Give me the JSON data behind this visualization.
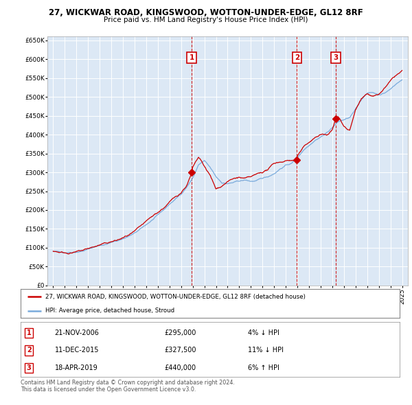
{
  "title1": "27, WICKWAR ROAD, KINGSWOOD, WOTTON-UNDER-EDGE, GL12 8RF",
  "title2": "Price paid vs. HM Land Registry's House Price Index (HPI)",
  "plot_bg_color": "#dce8f5",
  "red_line_label": "27, WICKWAR ROAD, KINGSWOOD, WOTTON-UNDER-EDGE, GL12 8RF (detached house)",
  "blue_line_label": "HPI: Average price, detached house, Stroud",
  "sales": [
    {
      "num": 1,
      "date_str": "21-NOV-2006",
      "date_x": 2006.9,
      "price": 295000,
      "pct": "4%",
      "dir": "↓"
    },
    {
      "num": 2,
      "date_str": "11-DEC-2015",
      "date_x": 2015.95,
      "price": 327500,
      "pct": "11%",
      "dir": "↓"
    },
    {
      "num": 3,
      "date_str": "18-APR-2019",
      "date_x": 2019.3,
      "price": 440000,
      "pct": "6%",
      "dir": "↑"
    }
  ],
  "footer1": "Contains HM Land Registry data © Crown copyright and database right 2024.",
  "footer2": "This data is licensed under the Open Government Licence v3.0.",
  "ylim": [
    0,
    660000
  ],
  "yticks": [
    0,
    50000,
    100000,
    150000,
    200000,
    250000,
    300000,
    350000,
    400000,
    450000,
    500000,
    550000,
    600000,
    650000
  ],
  "xlim": [
    1994.5,
    2025.5
  ],
  "xticks": [
    1995,
    1996,
    1997,
    1998,
    1999,
    2000,
    2001,
    2002,
    2003,
    2004,
    2005,
    2006,
    2007,
    2008,
    2009,
    2010,
    2011,
    2012,
    2013,
    2014,
    2015,
    2016,
    2017,
    2018,
    2019,
    2020,
    2021,
    2022,
    2023,
    2024,
    2025
  ],
  "hpi_anchors_x": [
    1995,
    1995.5,
    1996,
    1996.5,
    1997,
    1997.5,
    1998,
    1998.5,
    1999,
    1999.5,
    2000,
    2000.5,
    2001,
    2001.5,
    2002,
    2002.5,
    2003,
    2003.5,
    2004,
    2004.5,
    2005,
    2005.5,
    2006,
    2006.5,
    2007,
    2007.5,
    2008,
    2008.5,
    2009,
    2009.5,
    2010,
    2010.5,
    2011,
    2011.5,
    2012,
    2012.5,
    2013,
    2013.5,
    2014,
    2014.5,
    2015,
    2015.5,
    2016,
    2016.5,
    2017,
    2017.5,
    2018,
    2018.5,
    2019,
    2019.5,
    2020,
    2020.5,
    2021,
    2021.5,
    2022,
    2022.5,
    2023,
    2023.5,
    2024,
    2024.5,
    2025
  ],
  "hpi_anchors_y": [
    90000,
    89000,
    88000,
    90000,
    92000,
    95000,
    100000,
    105000,
    110000,
    113000,
    118000,
    122000,
    128000,
    135000,
    142000,
    152000,
    163000,
    175000,
    187000,
    200000,
    215000,
    228000,
    242000,
    262000,
    285000,
    320000,
    330000,
    310000,
    285000,
    270000,
    268000,
    270000,
    273000,
    275000,
    272000,
    273000,
    278000,
    283000,
    292000,
    305000,
    315000,
    320000,
    335000,
    355000,
    370000,
    385000,
    395000,
    405000,
    420000,
    435000,
    440000,
    445000,
    465000,
    490000,
    510000,
    510000,
    505000,
    510000,
    520000,
    535000,
    545000
  ],
  "red_anchors_x": [
    1995,
    1995.5,
    1996,
    1996.5,
    1997,
    1997.5,
    1998,
    1998.5,
    1999,
    1999.5,
    2000,
    2000.5,
    2001,
    2001.5,
    2002,
    2002.5,
    2003,
    2003.5,
    2004,
    2004.5,
    2005,
    2005.5,
    2006,
    2006.5,
    2006.9,
    2007,
    2007.5,
    2008,
    2008.5,
    2009,
    2009.5,
    2010,
    2010.5,
    2011,
    2011.5,
    2012,
    2012.5,
    2013,
    2013.5,
    2014,
    2014.5,
    2015,
    2015.5,
    2015.95,
    2016,
    2016.5,
    2017,
    2017.5,
    2018,
    2018.5,
    2019,
    2019.3,
    2019.5,
    2020,
    2020.5,
    2021,
    2021.5,
    2022,
    2022.5,
    2023,
    2023.5,
    2024,
    2024.5,
    2025
  ],
  "red_anchors_y": [
    91000,
    90000,
    89000,
    91000,
    93000,
    96000,
    101000,
    106000,
    111000,
    114000,
    119000,
    123000,
    129000,
    136000,
    143000,
    153000,
    164000,
    176000,
    188000,
    201000,
    216000,
    229000,
    243000,
    265000,
    295000,
    310000,
    335000,
    310000,
    285000,
    248000,
    258000,
    272000,
    278000,
    282000,
    278000,
    280000,
    285000,
    292000,
    300000,
    315000,
    320000,
    325000,
    328000,
    327500,
    340000,
    360000,
    375000,
    388000,
    398000,
    395000,
    410000,
    440000,
    445000,
    420000,
    410000,
    465000,
    500000,
    515000,
    508000,
    510000,
    528000,
    545000,
    560000,
    570000
  ]
}
